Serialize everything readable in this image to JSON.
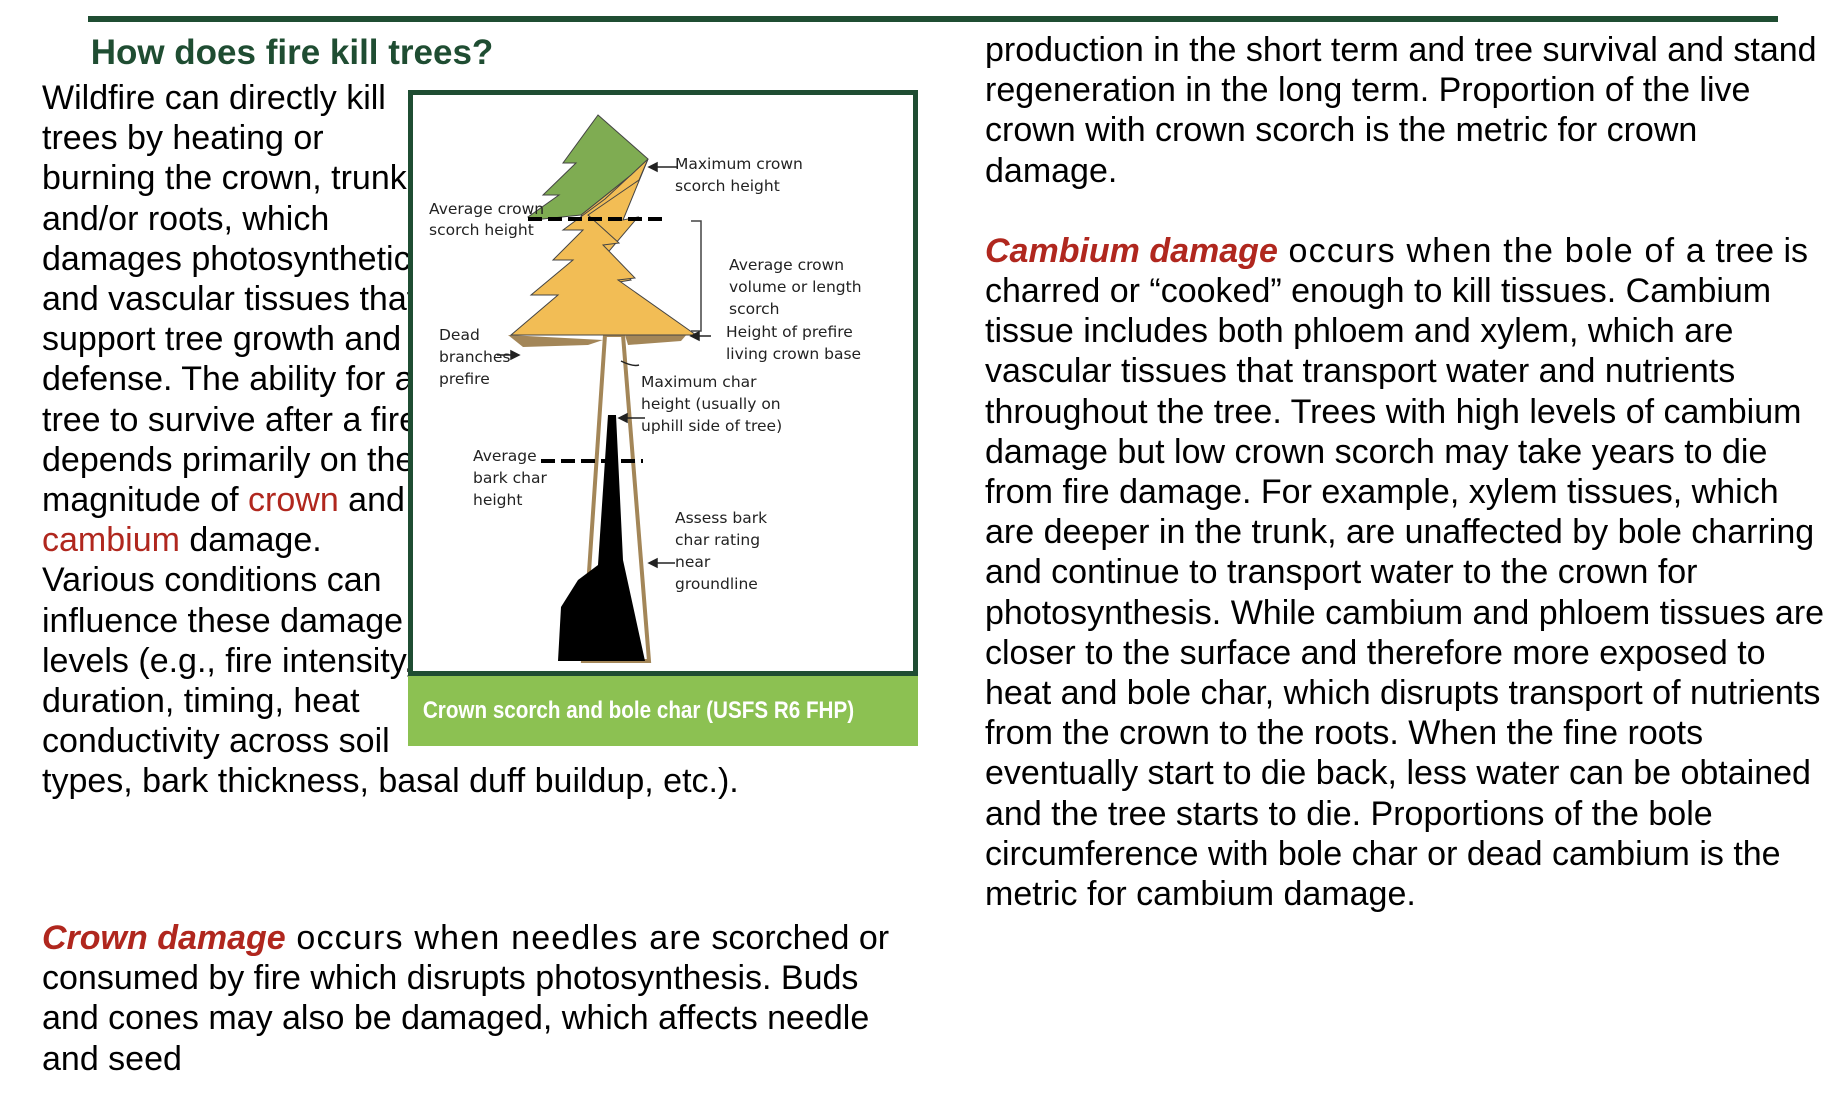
{
  "title": "How does fire kill trees?",
  "intro": {
    "text_a": "Wildfire can directly kill trees by heating or burning the crown, trunk and/or roots, which damages photosynthetic and vascular tissues that support tree growth and defense. The ability for a tree to survive after a fire depends primarily on the magnitude of ",
    "crown": "crown",
    "and": " and ",
    "cambium": "cambium",
    "text_b": " damage. Various conditions can influence these damage levels (e.g., fire intensity, duration, timing, heat conductivity across soil types, bark thickness, basal duff buildup, etc.)."
  },
  "crown_section": {
    "term": "Crown damage",
    "lead": " occurs when needles are",
    "text": " scorched or consumed by fire which disrupts photosynthesis. Buds and cones may also be damaged, which affects needle and seed"
  },
  "right": {
    "continuation": "production in the short term and tree survival and stand regeneration in the long term. Proportion of the live crown with crown scorch is the metric for crown damage.",
    "term": "Cambium damage",
    "lead": " occurs when the bole of a",
    "text": " tree is charred or “cooked” enough to kill tissues. Cambium tissue includes both phloem and xylem, which are vascular tissues that transport water and nutrients throughout the tree. Trees with high levels of cambium damage but low crown scorch may take years to die from fire damage. For example, xylem tissues, which are deeper in the trunk, are unaffected by bole charring and continue to transport water to the crown for photosynthesis. While cambium and phloem tissues are closer to the surface and therefore more exposed to heat and bole char, which disrupts transport of nutrients from the crown to the roots. When the fine roots eventually start to die back, less water can be obtained and the tree starts to die. Proportions of the bole circumference with bole char or dead cambium is the metric for cambium damage."
  },
  "figure": {
    "caption": "Crown scorch and bole char (USFS R6 FHP)",
    "labels": {
      "max_scorch_1": "Maximum crown",
      "max_scorch_2": "scorch height",
      "avg_scorch_1": "Average crown",
      "avg_scorch_2": "scorch height",
      "avg_volume_1": "Average crown",
      "avg_volume_2": "volume or length",
      "avg_volume_3": "scorch",
      "prefire_base_1": "Height of prefire",
      "prefire_base_2": "living crown base",
      "dead_1": "Dead",
      "dead_2": "branches",
      "dead_3": "prefire",
      "max_char_1": "Maximum char",
      "max_char_2": "height (usually on",
      "max_char_3": "uphill side of tree)",
      "avg_char_1": "Average",
      "avg_char_2": "bark char",
      "avg_char_3": "height",
      "assess_1": "Assess bark",
      "assess_2": "char rating",
      "assess_3": "near",
      "assess_4": "groundline"
    },
    "colors": {
      "green_crown": "#7fac52",
      "yellow_crown": "#f2bd55",
      "trunk": "#a38658",
      "char": "#000000",
      "frame": "#1f4d32",
      "caption_bg": "#8cc152"
    }
  }
}
